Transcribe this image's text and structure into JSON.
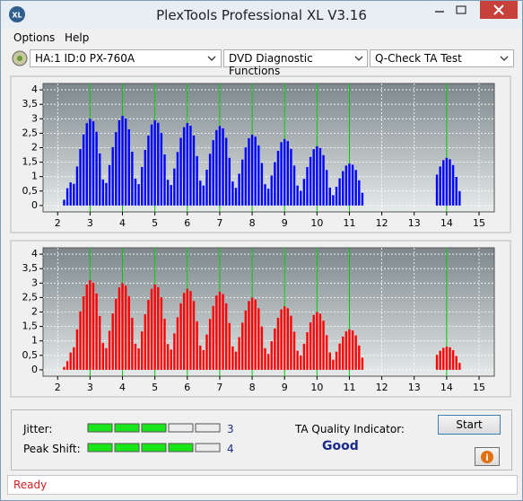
{
  "window": {
    "title": "PlexTools Professional XL V3.16",
    "menu": [
      "Options",
      "Help"
    ],
    "toolbar": {
      "drive": "HA:1 ID:0  PX-760A",
      "function": "DVD Diagnostic Functions",
      "test": "Q-Check TA Test"
    }
  },
  "chart_data": [
    {
      "type": "bar",
      "color": "#0000ff",
      "reference_color": "#00c800",
      "grid": true,
      "xlim": [
        1.55,
        15.47
      ],
      "ylim": [
        -0.22,
        4.22
      ],
      "xticks": [
        2,
        3,
        4,
        5,
        6,
        7,
        8,
        9,
        10,
        11,
        12,
        13,
        14,
        15
      ],
      "yticks": [
        0,
        {
          "value": 0.5,
          "label": "0,5"
        },
        1,
        {
          "value": 1.5,
          "label": "1,5"
        },
        2,
        {
          "value": 2.5,
          "label": "2,5"
        },
        3,
        {
          "value": 3.5,
          "label": "3,5"
        },
        4
      ],
      "reference_lines": [
        3,
        4,
        5,
        6,
        7,
        8,
        9,
        10,
        11,
        14
      ],
      "x": [
        2.2,
        2.3,
        2.4,
        2.5,
        2.6,
        2.7,
        2.8,
        2.9,
        3,
        3.1,
        3.2,
        3.3,
        3.4,
        3.5,
        3.6,
        3.7,
        3.8,
        3.9,
        4,
        4.1,
        4.2,
        4.3,
        4.4,
        4.5,
        4.6,
        4.7,
        4.8,
        4.9,
        5,
        5.1,
        5.2,
        5.3,
        5.4,
        5.5,
        5.6,
        5.7,
        5.8,
        5.9,
        6,
        6.1,
        6.2,
        6.3,
        6.4,
        6.5,
        6.6,
        6.7,
        6.8,
        6.9,
        7,
        7.1,
        7.2,
        7.3,
        7.4,
        7.5,
        7.6,
        7.7,
        7.8,
        7.9,
        8,
        8.1,
        8.2,
        8.3,
        8.4,
        8.5,
        8.6,
        8.7,
        8.8,
        8.9,
        9,
        9.1,
        9.2,
        9.3,
        9.4,
        9.5,
        9.6,
        9.7,
        9.8,
        9.9,
        10,
        10.1,
        10.2,
        10.3,
        10.4,
        10.5,
        10.6,
        10.7,
        10.8,
        10.9,
        11,
        11.1,
        11.2,
        11.3,
        11.4,
        13.7,
        13.8,
        13.9,
        14,
        14.1,
        14.2,
        14.3,
        14.4
      ],
      "values": [
        0.2,
        0.6,
        0.8,
        0.75,
        1.35,
        1.95,
        2.46,
        2.85,
        3,
        2.91,
        2.55,
        1.8,
        0.9,
        0.78,
        1.4,
        2.02,
        2.54,
        2.95,
        3.1,
        3.01,
        2.64,
        1.86,
        0.93,
        0.74,
        1.33,
        1.92,
        2.42,
        2.8,
        2.95,
        2.86,
        2.51,
        1.77,
        0.89,
        0.71,
        1.28,
        1.85,
        2.34,
        2.71,
        2.85,
        2.76,
        2.42,
        1.71,
        0.86,
        0.69,
        1.24,
        1.79,
        2.26,
        2.61,
        2.75,
        2.67,
        2.34,
        1.65,
        0.83,
        0.61,
        1.1,
        1.59,
        2.01,
        2.33,
        2.45,
        2.38,
        2.08,
        1.47,
        0.74,
        0.58,
        1.04,
        1.5,
        1.89,
        2.19,
        2.3,
        2.23,
        1.96,
        1.38,
        0.69,
        0.51,
        0.92,
        1.33,
        1.68,
        1.95,
        2.05,
        1.99,
        1.74,
        1.23,
        0.62,
        0.36,
        0.65,
        0.94,
        1.19,
        1.38,
        1.45,
        1.41,
        1.23,
        0.87,
        0.44,
        1.07,
        1.35,
        1.57,
        1.65,
        1.6,
        1.4,
        0.99,
        0.5
      ]
    },
    {
      "type": "bar",
      "color": "#ff0000",
      "reference_color": "#00c800",
      "grid": true,
      "xlim": [
        1.55,
        15.47
      ],
      "ylim": [
        -0.22,
        4.22
      ],
      "xticks": [
        2,
        3,
        4,
        5,
        6,
        7,
        8,
        9,
        10,
        11,
        12,
        13,
        14,
        15
      ],
      "yticks": [
        0,
        {
          "value": 0.5,
          "label": "0,5"
        },
        1,
        {
          "value": 1.5,
          "label": "1,5"
        },
        2,
        {
          "value": 2.5,
          "label": "2,5"
        },
        3,
        {
          "value": 3.5,
          "label": "3,5"
        },
        4
      ],
      "reference_lines": [
        3,
        4,
        5,
        6,
        7,
        8,
        9,
        10,
        11,
        14
      ],
      "x": [
        2.2,
        2.3,
        2.4,
        2.5,
        2.6,
        2.7,
        2.8,
        2.9,
        3,
        3.1,
        3.2,
        3.3,
        3.4,
        3.5,
        3.6,
        3.7,
        3.8,
        3.9,
        4,
        4.1,
        4.2,
        4.3,
        4.4,
        4.5,
        4.6,
        4.7,
        4.8,
        4.9,
        5,
        5.1,
        5.2,
        5.3,
        5.4,
        5.5,
        5.6,
        5.7,
        5.8,
        5.9,
        6,
        6.1,
        6.2,
        6.3,
        6.4,
        6.5,
        6.6,
        6.7,
        6.8,
        6.9,
        7,
        7.1,
        7.2,
        7.3,
        7.4,
        7.5,
        7.6,
        7.7,
        7.8,
        7.9,
        8,
        8.1,
        8.2,
        8.3,
        8.4,
        8.5,
        8.6,
        8.7,
        8.8,
        8.9,
        9,
        9.1,
        9.2,
        9.3,
        9.4,
        9.5,
        9.6,
        9.7,
        9.8,
        9.9,
        10,
        10.1,
        10.2,
        10.3,
        10.4,
        10.5,
        10.6,
        10.7,
        10.8,
        10.9,
        11,
        11.1,
        11.2,
        11.3,
        11.4,
        13.7,
        13.8,
        13.9,
        14,
        14.1,
        14.2,
        14.3,
        14.4
      ],
      "values": [
        0.1,
        0.3,
        0.6,
        0.78,
        1.4,
        2.02,
        2.54,
        2.95,
        3.1,
        3.01,
        2.64,
        1.86,
        0.93,
        0.75,
        1.35,
        1.95,
        2.46,
        2.85,
        3,
        2.91,
        2.55,
        1.8,
        0.9,
        0.74,
        1.33,
        1.92,
        2.42,
        2.8,
        2.95,
        2.86,
        2.51,
        1.77,
        0.89,
        0.7,
        1.26,
        1.82,
        2.3,
        2.66,
        2.8,
        2.72,
        2.38,
        1.68,
        0.84,
        0.68,
        1.22,
        1.76,
        2.21,
        2.57,
        2.7,
        2.62,
        2.3,
        1.62,
        0.81,
        0.63,
        1.13,
        1.63,
        2.05,
        2.38,
        2.5,
        2.43,
        2.13,
        1.5,
        0.75,
        0.55,
        0.99,
        1.43,
        1.8,
        2.09,
        2.2,
        2.13,
        1.87,
        1.32,
        0.66,
        0.5,
        0.9,
        1.3,
        1.64,
        1.9,
        2,
        1.94,
        1.7,
        1.2,
        0.6,
        0.35,
        0.63,
        0.91,
        1.15,
        1.33,
        1.4,
        1.36,
        1.19,
        0.84,
        0.42,
        0.52,
        0.66,
        0.76,
        0.8,
        0.78,
        0.68,
        0.48,
        0.24
      ]
    }
  ],
  "results": {
    "jitter_label": "Jitter:",
    "jitter": 3,
    "peak_shift_label": "Peak Shift:",
    "peak_shift": 4,
    "quality_label": "TA Quality Indicator:",
    "quality": "Good",
    "start": "Start"
  },
  "status": "Ready"
}
